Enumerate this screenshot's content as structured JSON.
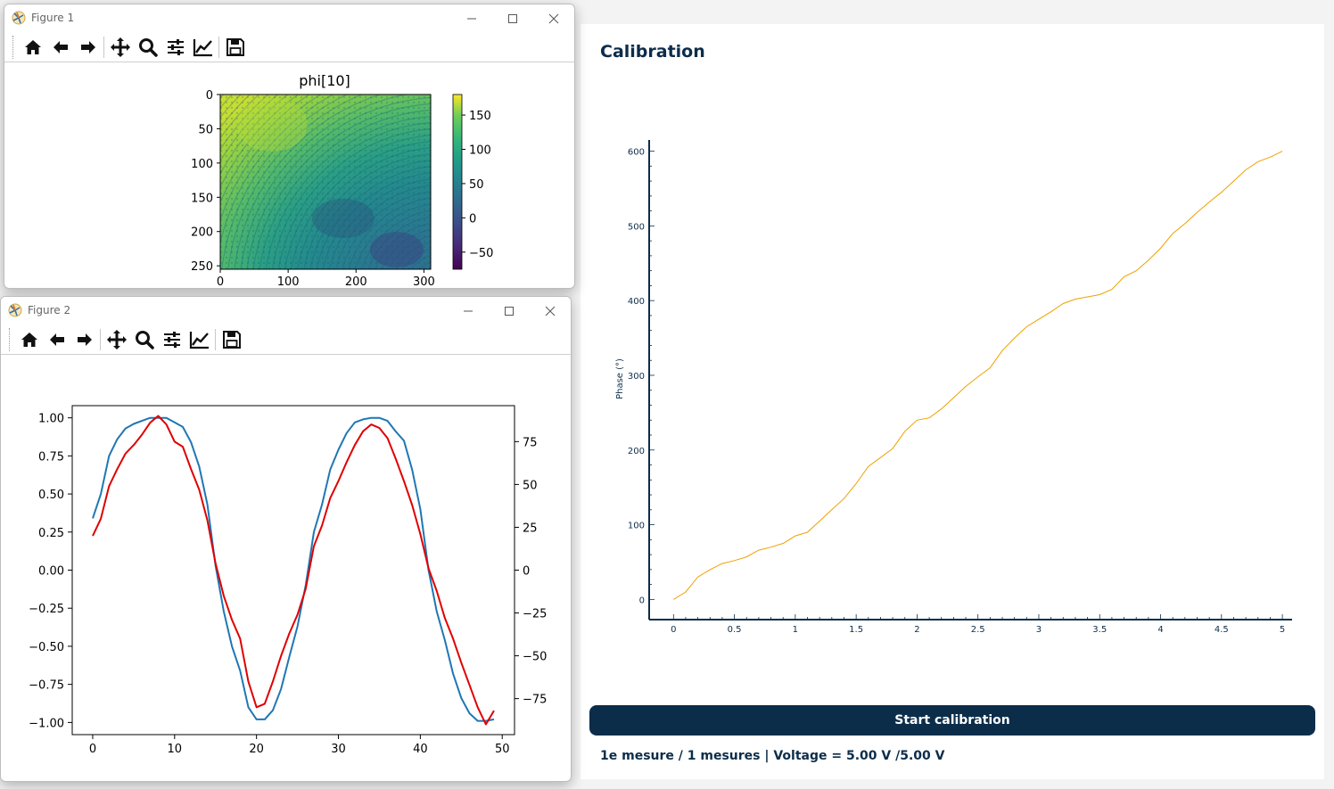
{
  "figure1": {
    "window_title": "Figure 1",
    "icon": "matplotlib-icon",
    "toolbar": [
      "home-icon",
      "back-icon",
      "forward-icon",
      "pan-icon",
      "zoom-icon",
      "configure-subplots-icon",
      "edit-axis-icon",
      "save-icon"
    ],
    "chart_data": {
      "type": "heatmap",
      "title": "phi[10]",
      "x_ticks": [
        "0",
        "100",
        "200",
        "300"
      ],
      "y_ticks": [
        "0",
        "50",
        "100",
        "150",
        "200",
        "250"
      ],
      "xlim": [
        0,
        310
      ],
      "ylim": [
        255,
        0
      ],
      "colorbar": {
        "colormap": "viridis",
        "ticks": [
          "150",
          "100",
          "50",
          "0",
          "−50"
        ],
        "range": [
          -75,
          180
        ]
      }
    }
  },
  "figure2": {
    "window_title": "Figure 2",
    "icon": "matplotlib-icon",
    "toolbar": [
      "home-icon",
      "back-icon",
      "forward-icon",
      "pan-icon",
      "zoom-icon",
      "configure-subplots-icon",
      "edit-axis-icon",
      "save-icon"
    ],
    "chart_data": {
      "type": "line",
      "xlim": [
        -2.5,
        51.5
      ],
      "x_ticks": [
        "0",
        "10",
        "20",
        "30",
        "40",
        "50"
      ],
      "y_left": {
        "range": [
          -1.08,
          1.08
        ],
        "ticks": [
          "1.00",
          "0.75",
          "0.50",
          "0.25",
          "0.00",
          "−0.25",
          "−0.50",
          "−0.75",
          "−1.00"
        ]
      },
      "y_right": {
        "range": [
          -96,
          96
        ],
        "ticks": [
          "75",
          "50",
          "25",
          "0",
          "−25",
          "−50",
          "−75"
        ]
      },
      "series": [
        {
          "color": "#1f77b4",
          "axis": "left",
          "x": [
            0,
            1,
            2,
            3,
            4,
            5,
            6,
            7,
            8,
            9,
            10,
            11,
            12,
            13,
            14,
            15,
            16,
            17,
            18,
            19,
            20,
            21,
            22,
            23,
            24,
            25,
            26,
            27,
            28,
            29,
            30,
            31,
            32,
            33,
            34,
            35,
            36,
            37,
            38,
            39,
            40,
            41,
            42,
            43,
            44,
            45,
            46,
            47,
            48,
            49
          ],
          "y": [
            0.34,
            0.5,
            0.75,
            0.86,
            0.93,
            0.96,
            0.98,
            1.0,
            1.0,
            1.0,
            0.97,
            0.94,
            0.84,
            0.68,
            0.43,
            0.03,
            -0.27,
            -0.5,
            -0.66,
            -0.9,
            -0.98,
            -0.98,
            -0.92,
            -0.78,
            -0.57,
            -0.37,
            -0.1,
            0.25,
            0.43,
            0.66,
            0.79,
            0.9,
            0.97,
            0.99,
            1.0,
            1.0,
            0.98,
            0.91,
            0.85,
            0.66,
            0.4,
            0.0,
            -0.27,
            -0.46,
            -0.68,
            -0.84,
            -0.94,
            -0.99,
            -0.99,
            -0.98
          ]
        },
        {
          "color": "#e00000",
          "axis": "right",
          "x": [
            0,
            1,
            2,
            3,
            4,
            5,
            6,
            7,
            8,
            9,
            10,
            11,
            12,
            13,
            14,
            15,
            16,
            17,
            18,
            19,
            20,
            21,
            22,
            23,
            24,
            25,
            26,
            27,
            28,
            29,
            30,
            31,
            32,
            33,
            34,
            35,
            36,
            37,
            38,
            39,
            40,
            41,
            42,
            43,
            44,
            45,
            46,
            47,
            48,
            49
          ],
          "y": [
            20,
            30,
            49,
            59,
            68,
            73,
            79,
            86,
            90,
            85,
            75,
            72,
            59,
            47,
            29,
            4,
            -15,
            -29,
            -40,
            -65,
            -80,
            -78,
            -65,
            -50,
            -37,
            -26,
            -11,
            14,
            26,
            42,
            52,
            63,
            73,
            81,
            85,
            83,
            77,
            65,
            52,
            38,
            21,
            1,
            -12,
            -28,
            -40,
            -54,
            -67,
            -80,
            -90,
            -82
          ]
        }
      ]
    }
  },
  "calibration": {
    "title": "Calibration",
    "start_button": "Start calibration",
    "status": "1e mesure / 1 mesures | Voltage = 5.00 V /5.00 V",
    "chart_data": {
      "type": "line",
      "ylabel": "Phase (°)",
      "xlim": [
        -0.2,
        5.08
      ],
      "ylim": [
        -27,
        615
      ],
      "x_ticks": [
        "0",
        "0.5",
        "1",
        "1.5",
        "2",
        "2.5",
        "3",
        "3.5",
        "4",
        "4.5",
        "5"
      ],
      "y_ticks": [
        "0",
        "100",
        "200",
        "300",
        "400",
        "500",
        "600"
      ],
      "series": [
        {
          "color": "#f0a000",
          "x": [
            0,
            0.1,
            0.2,
            0.3,
            0.4,
            0.5,
            0.6,
            0.7,
            0.8,
            0.9,
            1.0,
            1.1,
            1.2,
            1.3,
            1.4,
            1.5,
            1.6,
            1.7,
            1.8,
            1.9,
            2.0,
            2.1,
            2.2,
            2.3,
            2.4,
            2.5,
            2.6,
            2.7,
            2.8,
            2.9,
            3.0,
            3.1,
            3.2,
            3.3,
            3.4,
            3.5,
            3.6,
            3.7,
            3.8,
            3.9,
            4.0,
            4.1,
            4.2,
            4.3,
            4.4,
            4.5,
            4.6,
            4.7,
            4.8,
            4.9,
            5.0
          ],
          "y": [
            0,
            10,
            30,
            40,
            48,
            52,
            57,
            66,
            70,
            75,
            85,
            90,
            105,
            120,
            135,
            155,
            178,
            190,
            202,
            225,
            240,
            243,
            255,
            270,
            285,
            298,
            310,
            333,
            350,
            365,
            375,
            385,
            396,
            402,
            405,
            408,
            415,
            432,
            440,
            454,
            470,
            490,
            503,
            518,
            532,
            545,
            560,
            575,
            586,
            592,
            600
          ]
        }
      ]
    }
  }
}
